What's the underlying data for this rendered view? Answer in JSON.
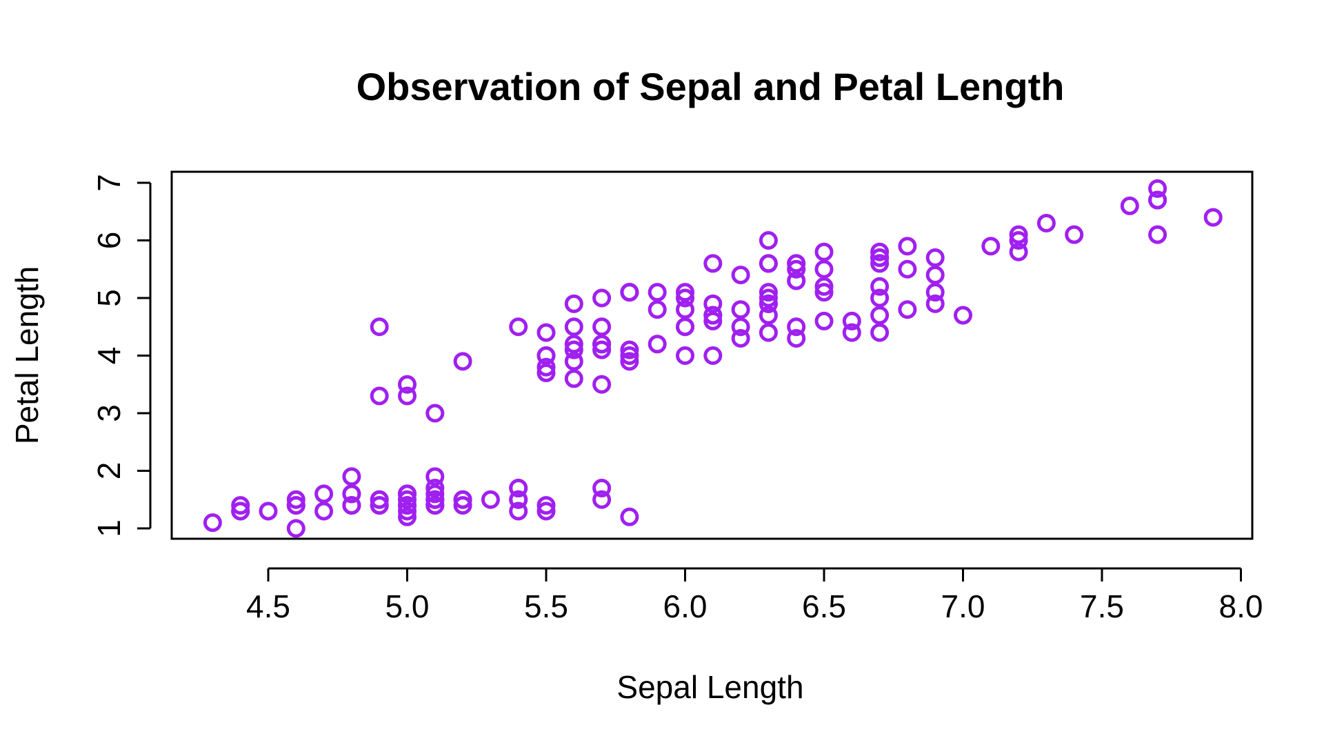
{
  "chart_data": {
    "type": "scatter",
    "title": "Observation of Sepal and Petal Length",
    "xlabel": "Sepal Length",
    "ylabel": "Petal Length",
    "xlim": [
      4.3,
      7.9
    ],
    "ylim": [
      1.0,
      6.9
    ],
    "x_ticks": [
      "4.5",
      "5.0",
      "5.5",
      "6.0",
      "6.5",
      "7.0",
      "7.5",
      "8.0"
    ],
    "y_ticks": [
      "1",
      "2",
      "3",
      "4",
      "5",
      "6",
      "7"
    ],
    "grid": false,
    "marker": "open-circle",
    "color": "#A020F0",
    "points": [
      [
        5.1,
        1.4
      ],
      [
        4.9,
        1.4
      ],
      [
        4.7,
        1.3
      ],
      [
        4.6,
        1.5
      ],
      [
        5.0,
        1.4
      ],
      [
        5.4,
        1.7
      ],
      [
        4.6,
        1.4
      ],
      [
        5.0,
        1.5
      ],
      [
        4.4,
        1.4
      ],
      [
        4.9,
        1.5
      ],
      [
        5.4,
        1.5
      ],
      [
        4.8,
        1.6
      ],
      [
        4.8,
        1.4
      ],
      [
        4.3,
        1.1
      ],
      [
        5.8,
        1.2
      ],
      [
        5.7,
        1.5
      ],
      [
        5.4,
        1.3
      ],
      [
        5.1,
        1.4
      ],
      [
        5.7,
        1.7
      ],
      [
        5.1,
        1.5
      ],
      [
        5.4,
        1.7
      ],
      [
        5.1,
        1.5
      ],
      [
        4.6,
        1.0
      ],
      [
        5.1,
        1.7
      ],
      [
        4.8,
        1.9
      ],
      [
        5.0,
        1.6
      ],
      [
        5.0,
        1.6
      ],
      [
        5.2,
        1.5
      ],
      [
        5.2,
        1.4
      ],
      [
        4.7,
        1.6
      ],
      [
        4.8,
        1.6
      ],
      [
        5.4,
        1.5
      ],
      [
        5.2,
        1.5
      ],
      [
        5.5,
        1.4
      ],
      [
        4.9,
        1.5
      ],
      [
        5.0,
        1.2
      ],
      [
        5.5,
        1.3
      ],
      [
        4.9,
        1.4
      ],
      [
        4.4,
        1.3
      ],
      [
        5.1,
        1.5
      ],
      [
        5.0,
        1.3
      ],
      [
        4.5,
        1.3
      ],
      [
        4.4,
        1.3
      ],
      [
        5.0,
        1.6
      ],
      [
        5.1,
        1.9
      ],
      [
        4.8,
        1.4
      ],
      [
        5.1,
        1.6
      ],
      [
        4.6,
        1.4
      ],
      [
        5.3,
        1.5
      ],
      [
        5.0,
        1.4
      ],
      [
        7.0,
        4.7
      ],
      [
        6.4,
        4.5
      ],
      [
        6.9,
        4.9
      ],
      [
        5.5,
        4.0
      ],
      [
        6.5,
        4.6
      ],
      [
        5.7,
        4.5
      ],
      [
        6.3,
        4.7
      ],
      [
        4.9,
        3.3
      ],
      [
        6.6,
        4.6
      ],
      [
        5.2,
        3.9
      ],
      [
        5.0,
        3.5
      ],
      [
        5.9,
        4.2
      ],
      [
        6.0,
        4.0
      ],
      [
        6.1,
        4.7
      ],
      [
        5.6,
        3.6
      ],
      [
        6.7,
        4.4
      ],
      [
        5.6,
        4.5
      ],
      [
        5.8,
        4.1
      ],
      [
        6.2,
        4.5
      ],
      [
        5.6,
        3.9
      ],
      [
        5.9,
        4.8
      ],
      [
        6.1,
        4.0
      ],
      [
        6.3,
        4.9
      ],
      [
        6.1,
        4.7
      ],
      [
        6.4,
        4.3
      ],
      [
        6.6,
        4.4
      ],
      [
        6.8,
        4.8
      ],
      [
        6.7,
        5.0
      ],
      [
        6.0,
        4.5
      ],
      [
        5.7,
        3.5
      ],
      [
        5.5,
        3.8
      ],
      [
        5.5,
        3.7
      ],
      [
        5.8,
        3.9
      ],
      [
        6.0,
        5.1
      ],
      [
        5.4,
        4.5
      ],
      [
        6.0,
        4.5
      ],
      [
        6.7,
        4.7
      ],
      [
        6.3,
        4.4
      ],
      [
        5.6,
        4.1
      ],
      [
        5.5,
        4.0
      ],
      [
        5.5,
        4.4
      ],
      [
        6.1,
        4.6
      ],
      [
        5.8,
        4.0
      ],
      [
        5.0,
        3.3
      ],
      [
        5.6,
        4.2
      ],
      [
        5.7,
        4.2
      ],
      [
        5.7,
        4.2
      ],
      [
        6.2,
        4.3
      ],
      [
        5.1,
        3.0
      ],
      [
        5.7,
        4.1
      ],
      [
        6.3,
        6.0
      ],
      [
        5.8,
        5.1
      ],
      [
        7.1,
        5.9
      ],
      [
        6.3,
        5.6
      ],
      [
        6.5,
        5.8
      ],
      [
        7.6,
        6.6
      ],
      [
        4.9,
        4.5
      ],
      [
        7.3,
        6.3
      ],
      [
        6.7,
        5.8
      ],
      [
        7.2,
        6.1
      ],
      [
        6.5,
        5.1
      ],
      [
        6.4,
        5.3
      ],
      [
        6.8,
        5.5
      ],
      [
        5.7,
        5.0
      ],
      [
        5.8,
        5.1
      ],
      [
        6.4,
        5.3
      ],
      [
        6.5,
        5.5
      ],
      [
        7.7,
        6.7
      ],
      [
        7.7,
        6.9
      ],
      [
        6.0,
        5.0
      ],
      [
        6.9,
        5.7
      ],
      [
        5.6,
        4.9
      ],
      [
        7.7,
        6.7
      ],
      [
        6.3,
        4.9
      ],
      [
        6.7,
        5.7
      ],
      [
        7.2,
        6.0
      ],
      [
        6.2,
        4.8
      ],
      [
        6.1,
        4.9
      ],
      [
        6.4,
        5.6
      ],
      [
        7.2,
        5.8
      ],
      [
        7.4,
        6.1
      ],
      [
        7.9,
        6.4
      ],
      [
        6.4,
        5.6
      ],
      [
        6.3,
        5.1
      ],
      [
        6.1,
        5.6
      ],
      [
        7.7,
        6.1
      ],
      [
        6.3,
        5.6
      ],
      [
        6.4,
        5.5
      ],
      [
        6.0,
        4.8
      ],
      [
        6.9,
        5.4
      ],
      [
        6.7,
        5.6
      ],
      [
        6.9,
        5.1
      ],
      [
        5.8,
        5.1
      ],
      [
        6.8,
        5.9
      ],
      [
        6.7,
        5.7
      ],
      [
        6.7,
        5.2
      ],
      [
        6.3,
        5.0
      ],
      [
        6.5,
        5.2
      ],
      [
        6.2,
        5.4
      ],
      [
        5.9,
        5.1
      ]
    ]
  }
}
